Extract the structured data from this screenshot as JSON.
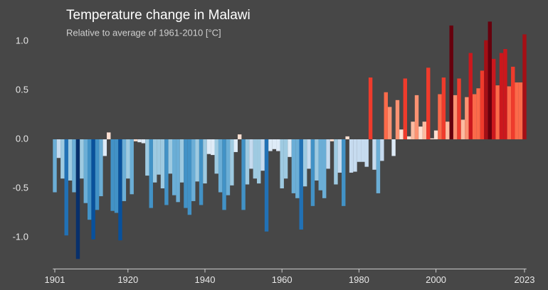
{
  "chart_data": {
    "type": "bar",
    "title": "Temperature change in Malawi",
    "subtitle": "Relative to average of 1961-2010  [°C]",
    "x": [
      1901,
      1902,
      1903,
      1904,
      1905,
      1906,
      1907,
      1908,
      1909,
      1910,
      1911,
      1912,
      1913,
      1914,
      1915,
      1916,
      1917,
      1918,
      1919,
      1920,
      1921,
      1922,
      1923,
      1924,
      1925,
      1926,
      1927,
      1928,
      1929,
      1930,
      1931,
      1932,
      1933,
      1934,
      1935,
      1936,
      1937,
      1938,
      1939,
      1940,
      1941,
      1942,
      1943,
      1944,
      1945,
      1946,
      1947,
      1948,
      1949,
      1950,
      1951,
      1952,
      1953,
      1954,
      1955,
      1956,
      1957,
      1958,
      1959,
      1960,
      1961,
      1962,
      1963,
      1964,
      1965,
      1966,
      1967,
      1968,
      1969,
      1970,
      1971,
      1972,
      1973,
      1974,
      1975,
      1976,
      1977,
      1978,
      1979,
      1980,
      1981,
      1982,
      1983,
      1984,
      1985,
      1986,
      1987,
      1988,
      1989,
      1990,
      1991,
      1992,
      1993,
      1994,
      1995,
      1996,
      1997,
      1998,
      1999,
      2000,
      2001,
      2002,
      2003,
      2004,
      2005,
      2006,
      2007,
      2008,
      2009,
      2010,
      2011,
      2012,
      2013,
      2014,
      2015,
      2016,
      2017,
      2018,
      2019,
      2020,
      2021,
      2022,
      2023
    ],
    "values": [
      -0.54,
      -0.19,
      -0.4,
      -0.98,
      -0.42,
      -0.54,
      -1.22,
      -0.4,
      -0.65,
      -0.82,
      -1.02,
      -0.72,
      -0.58,
      -0.17,
      0.07,
      -0.73,
      -0.75,
      -1.03,
      -0.63,
      -0.4,
      -0.56,
      -0.02,
      -0.03,
      -0.04,
      -0.37,
      -0.7,
      -0.44,
      -0.36,
      -0.5,
      -0.67,
      -0.35,
      -0.57,
      -0.64,
      -0.44,
      -0.7,
      -0.77,
      -0.63,
      -0.43,
      -0.67,
      -0.45,
      -0.15,
      -0.16,
      -0.35,
      -0.54,
      -0.72,
      -0.57,
      -0.47,
      -0.13,
      0.05,
      -0.72,
      -0.46,
      -0.3,
      -0.4,
      -0.45,
      -0.32,
      -0.94,
      -0.12,
      -0.1,
      -0.12,
      -0.5,
      -0.4,
      -0.18,
      -0.55,
      -0.6,
      -0.92,
      -0.48,
      -0.3,
      -0.68,
      -0.42,
      -0.52,
      -0.6,
      -0.3,
      -0.02,
      -0.46,
      -0.34,
      -0.68,
      0.03,
      -0.34,
      -0.33,
      -0.23,
      -0.23,
      -0.28,
      0.63,
      -0.31,
      -0.55,
      -0.22,
      0.48,
      0.33,
      -0.17,
      0.4,
      0.1,
      0.62,
      0.03,
      0.18,
      0.45,
      0.13,
      0.18,
      0.73,
      0.01,
      0.09,
      0.46,
      0.63,
      0.18,
      1.16,
      0.45,
      0.62,
      0.2,
      0.43,
      0.88,
      0.46,
      0.52,
      0.7,
      1.01,
      1.2,
      0.82,
      0.55,
      0.88,
      0.92,
      0.54,
      0.74,
      0.58,
      0.58,
      1.07
    ],
    "colormap": [
      "#08306b",
      "#08519c",
      "#2171b5",
      "#4292c6",
      "#6baed6",
      "#9ecae1",
      "#c6dbef",
      "#deebf7",
      "#fee0d2",
      "#fcbba1",
      "#fc9272",
      "#fb6a4a",
      "#ef3b2c",
      "#cb181d",
      "#a50f15",
      "#67000d"
    ],
    "xlim": [
      1900.5,
      2023.5
    ],
    "xticks": [
      1901,
      1920,
      1940,
      1960,
      1980,
      2000,
      2023
    ],
    "ylim": [
      -1.3,
      1.25
    ],
    "yticks": [
      {
        "value": 1.0,
        "label": "1.0"
      },
      {
        "value": 0.5,
        "label": "0.5"
      },
      {
        "value": 0.0,
        "label": "0.0"
      },
      {
        "value": -0.5,
        "label": "-0.5"
      },
      {
        "value": -1.0,
        "label": "-1.0"
      }
    ]
  }
}
